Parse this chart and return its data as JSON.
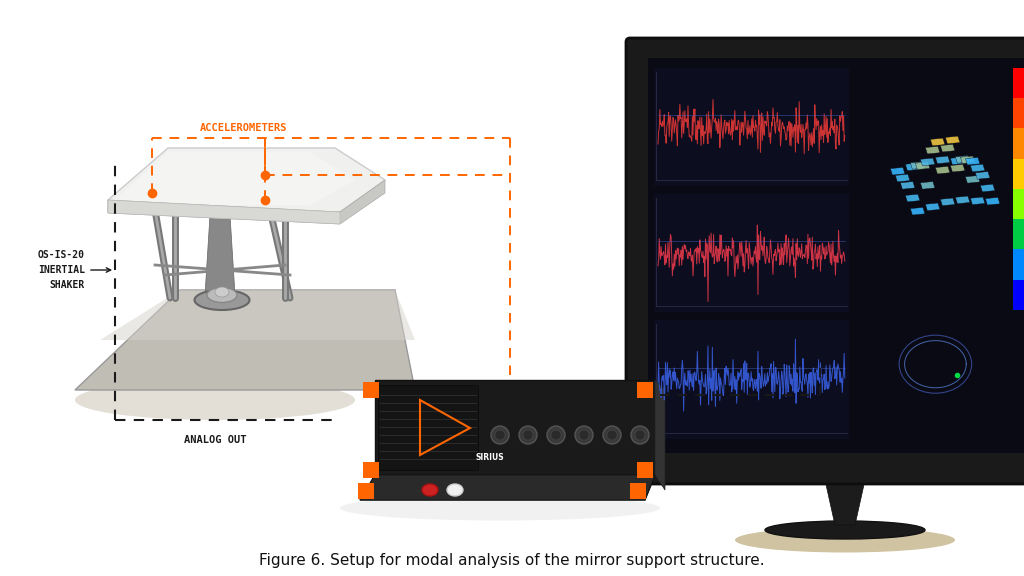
{
  "bg_color": "#ffffff",
  "orange": "#FF6500",
  "black": "#1a1a1a",
  "gray_light": "#e8e8e8",
  "gray_mid": "#aaaaaa",
  "gray_dark": "#555555",
  "label_accel": "ACCELEROMETERS",
  "label_shaker_line1": "OS-IS-20",
  "label_shaker_line2": "INERTIAL",
  "label_shaker_line3": "SHAKER",
  "label_analog": "ANALOG OUT",
  "caption": "Figure 6. Setup for modal analysis of the mirror support structure.",
  "figsize": [
    10.24,
    5.76
  ],
  "dpi": 100,
  "caption_fontsize": 11
}
